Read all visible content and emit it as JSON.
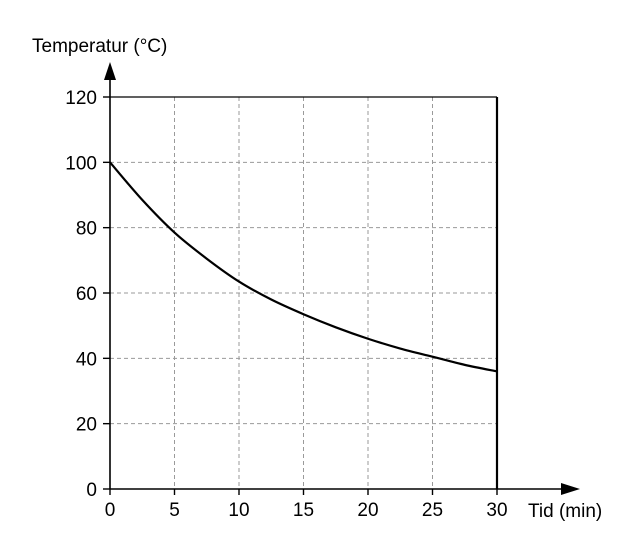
{
  "chart_data": {
    "type": "line",
    "title": "",
    "ylabel": "Temperatur (°C)",
    "xlabel": "Tid (min)",
    "xlim": [
      0,
      30
    ],
    "ylim": [
      0,
      120
    ],
    "x_ticks": [
      0,
      5,
      10,
      15,
      20,
      25,
      30
    ],
    "y_ticks": [
      0,
      20,
      40,
      60,
      80,
      100,
      120
    ],
    "grid": true,
    "grid_style": "dashed",
    "series": [
      {
        "x": [
          0,
          2.5,
          5,
          7.5,
          10,
          12.5,
          15,
          17.5,
          20,
          22.5,
          25,
          27.5,
          30
        ],
        "y": [
          100,
          88.5,
          78.5,
          70.5,
          63.5,
          58,
          53.5,
          49.5,
          46,
          43,
          40.5,
          38,
          36
        ],
        "color": "#000000"
      }
    ]
  }
}
